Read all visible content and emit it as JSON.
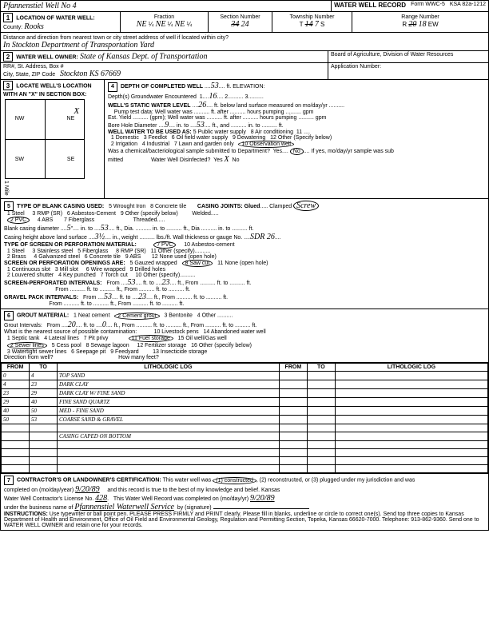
{
  "header": {
    "well_name": "Pfannenstiel Well No 4",
    "form_title": "WATER WELL RECORD",
    "form_no": "Form WWC-5",
    "ksa": "KSA 82a-1212"
  },
  "location": {
    "section_title": "LOCATION OF WATER WELL:",
    "county_label": "County:",
    "county": "Rooks",
    "fraction_label": "Fraction",
    "fraction1": "NE",
    "fraction2": "NE",
    "fraction3": "NE",
    "section_label": "Section Number",
    "section": "24",
    "township_label": "Township Number",
    "township_t": "T",
    "township": "7",
    "township_s": "S",
    "range_label": "Range Number",
    "range_r": "R",
    "range": "18",
    "range_ew": "EW",
    "distance_label": "Distance and direction from nearest town or city street address of well if located within city?",
    "distance": "In Stockton Department of Transportation Yard"
  },
  "owner": {
    "section_title": "WATER WELL OWNER:",
    "owner": "State of Kansas Dept. of Transportation",
    "addr_label": "RR#, St. Address, Box #",
    "city_label": "City, State, ZIP Code",
    "city": "Stockton KS 67669",
    "board": "Board of Agriculture, Division of Water Resources",
    "app_label": "Application Number:"
  },
  "locate": {
    "title": "LOCATE WELL'S LOCATION WITH AN \"X\" IN SECTION BOX:",
    "nw": "NW",
    "ne": "NE",
    "sw": "SW",
    "se": "SE",
    "w": "W",
    "e": "E",
    "mile": "1 Mile"
  },
  "depth": {
    "depth_completed_label": "DEPTH OF COMPLETED WELL",
    "depth_completed": "53",
    "elev_label": "ft. ELEVATION:",
    "gw_label": "Depth(s) Groundwater Encountered",
    "gw1": "16",
    "static_label": "WELL'S STATIC WATER LEVEL",
    "static": "26",
    "static_suffix": "ft. below land surface measured on mo/day/yr",
    "pump_label": "Pump test data:",
    "well_was": "Well water was",
    "after": "ft. after",
    "hours": "hours pumping",
    "gpm": "gpm",
    "est_label": "Est. Yield",
    "bore_label": "Bore Hole Diameter",
    "bore1": "9",
    "bore_to": "in. to",
    "bore2": "53",
    "use_label": "WELL WATER TO BE USED AS:",
    "u1": "1 Domestic",
    "u2": "2 Irrigation",
    "u3": "3 Feedlot",
    "u4": "4 Industrial",
    "u5": "5 Public water supply",
    "u6": "6 Oil field water supply",
    "u7": "7 Lawn and garden only",
    "u8": "8 Air conditioning",
    "u9": "9 Dewatering",
    "u10": "10 Observation well",
    "u12": "12 Other (Specify below)",
    "use_circled": "10",
    "chem_label": "Was a chemical/bacteriological sample submitted to Department?",
    "chem_yes": "Yes",
    "chem_no": "No",
    "chem_suffix": "If yes, mo/day/yr sample was sub",
    "mitted": "mitted",
    "disinf": "Water Well Disinfected?",
    "disinf_yes": "Yes",
    "disinf_no": "No",
    "disinf_ans": "X"
  },
  "casing": {
    "title": "TYPE OF BLANK CASING USED:",
    "c1": "1 Steel",
    "c2": "2 PVC",
    "c3": "3 RMP (SR)",
    "c4": "4 ABS",
    "c5": "5 Wrought Iron",
    "c6": "6 Asbestos-Cement",
    "c7": "7 Fiberglass",
    "c8": "8 Concrete tile",
    "c9": "9 Other (specify below)",
    "joints": "CASING JOINTS: Glued",
    "clamped": "Clamped",
    "screw": "Screw",
    "welded": "Welded",
    "threaded": "Threaded",
    "diam_label": "Blank casing diameter",
    "diam": "5",
    "in_to": "in. to",
    "to": "53",
    "ft_dia": "ft., Dia.",
    "into": "in. to",
    "ft_dia2": "ft., Dia",
    "into2": "in. to",
    "ft": "ft.",
    "height_label": "Casing height above land surface",
    "height": "3½",
    "wt": "in., weight",
    "lbs": "lbs./ft. Wall thickness or gauge No.",
    "gauge": "SDR 26"
  },
  "screen": {
    "title": "TYPE OF SCREEN OR PERFORATION MATERIAL:",
    "s1": "1 Steel",
    "s2": "2 Brass",
    "s3": "3 Stainless steel",
    "s4": "4 Galvanized steel",
    "s5": "5 Fiberglass",
    "s6": "6 Concrete tile",
    "s7": "7 PVC",
    "s8": "8 RMP (SR)",
    "s9": "9 ABS",
    "s10": "10 Asbestos-cement",
    "s11": "11 Other (specify)",
    "s12": "12 None used (open hole)",
    "open_title": "SCREEN OR PERFORATION OPENINGS ARE:",
    "o1": "1 Continuous slot",
    "o2": "2 Louvered shutter",
    "o3": "3 Mill slot",
    "o4": "4 Key punched",
    "o5": "5 Gauzed wrapped",
    "o6": "6 Wire wrapped",
    "o7": "7 Torch cut",
    "o8": "8 Saw cut",
    "o9": "9 Drilled holes",
    "o10": "10 Other (specify)",
    "o11": "11 None (open hole)",
    "sp_label": "SCREEN-PERFORATED INTERVALS:",
    "from": "From",
    "to": "ft. to",
    "fromft": "ft., From",
    "sp_from": "53",
    "sp_to": "23",
    "gp_label": "GRAVEL PACK INTERVALS:",
    "gp_from": "53",
    "gp_to": "23"
  },
  "grout": {
    "title": "GROUT MATERIAL:",
    "g1": "1 Neat cement",
    "g2": "2 Cement grout",
    "g3": "3 Bentonite",
    "g4": "4 Other",
    "int_label": "Grout Intervals:",
    "from": "From",
    "gi_from": "20",
    "ft_to": "ft. to",
    "gi_to": "0",
    "ft": "ft.",
    "contam": "What is the nearest source of possible contamination:",
    "p1": "1 Septic tank",
    "p2": "2 Sewer lines",
    "p3": "3 Watertight sewer lines",
    "p4": "4 Lateral lines",
    "p5": "5 Cess pool",
    "p6": "6 Seepage pit",
    "p7": "7 Pit privy",
    "p8": "8 Sewage lagoon",
    "p9": "9 Feedyard",
    "p10": "10 Livestock pens",
    "p11": "11 Fuel storage",
    "p12": "12 Fertilizer storage",
    "p13": "13 Insecticide storage",
    "p14": "14 Abandoned water well",
    "p15": "15 Oil well/Gas well",
    "p16": "16 Other (specify below)",
    "dir": "Direction from well?",
    "dist": "How many feet?"
  },
  "litho": {
    "h_from": "FROM",
    "h_to": "TO",
    "h_log": "LITHOLOGIC LOG",
    "rows": [
      {
        "from": "0",
        "to": "4",
        "desc": "TOP SAND"
      },
      {
        "from": "4",
        "to": "23",
        "desc": "DARK CLAY"
      },
      {
        "from": "23",
        "to": "29",
        "desc": "DARK CLAY W/ FINE SAND"
      },
      {
        "from": "29",
        "to": "40",
        "desc": "FINE SAND QUARTZ"
      },
      {
        "from": "40",
        "to": "50",
        "desc": "MED - FINE SAND"
      },
      {
        "from": "50",
        "to": "53",
        "desc": "COARSE SAND & GRAVEL"
      }
    ],
    "note": "CASING CAPED ON BOTTOM"
  },
  "cert": {
    "title": "CONTRACTOR'S OR LANDOWNER'S CERTIFICATION:",
    "text1": "This water well was",
    "opt1": "(1) constructed",
    "opt2": "(2) reconstructed, or",
    "opt3": "(3) plugged under my jurisdiction and was",
    "completed": "completed on (mo/day/year)",
    "date": "9/20/89",
    "text2": "and this record is true to the best of my knowledge and belief. Kansas",
    "lic_label": "Water Well Contractor's License No.",
    "lic": "428",
    "text3": "This Water Well Record was completed on (mo/day/yr)",
    "date2": "9/20/89",
    "under": "under the business name of",
    "bus": "Pfannenstiel Waterwell Service",
    "by": "by (signature)",
    "instr_label": "INSTRUCTIONS:",
    "instr": "Use typewriter or ball point pen. PLEASE PRESS FIRMLY and PRINT clearly. Please fill in blanks, underline or circle to correct one(s). Send top three copies to Kansas Department of Health and Environment, Office of Oil Field and Environmental Geology, Regulation and Permitting Section, Topeka, Kansas 66620-7000. Telephone: 913-862-9360. Send one to WATER WELL OWNER and retain one for your records."
  }
}
